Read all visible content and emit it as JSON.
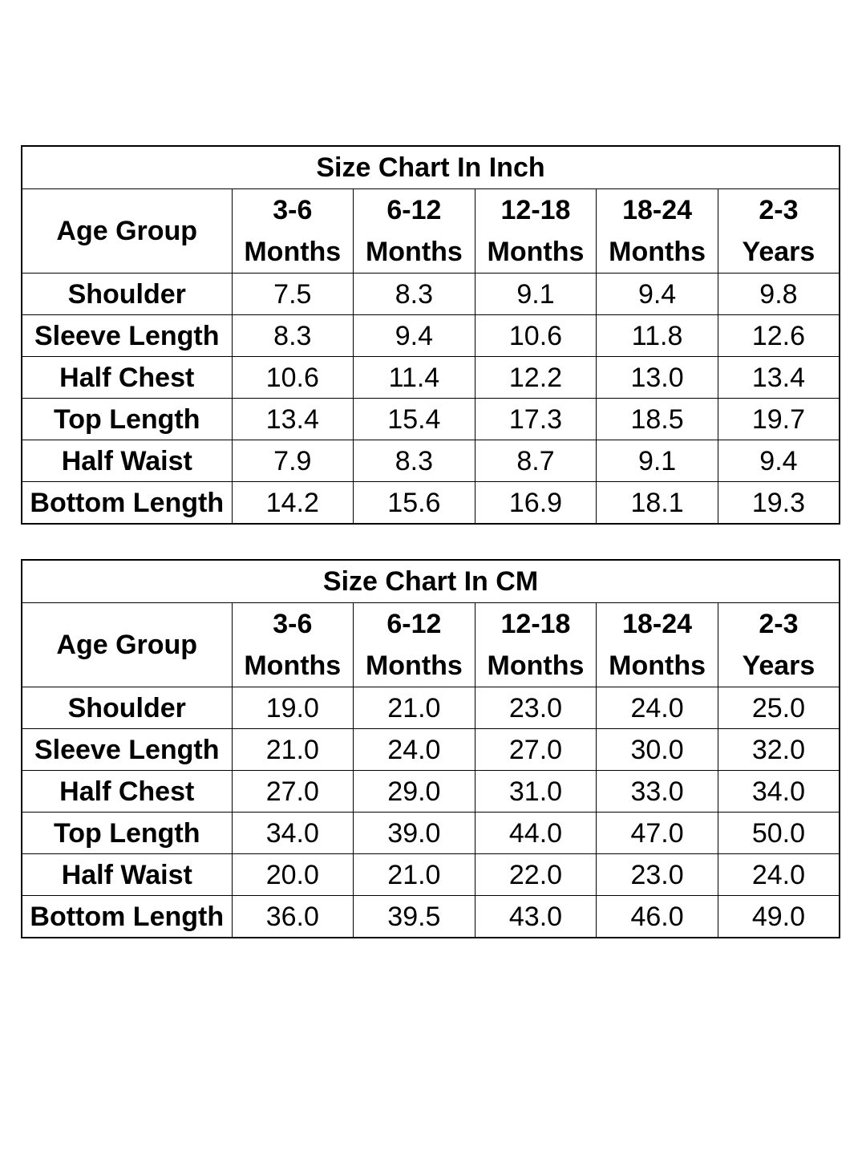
{
  "tables": [
    {
      "title": "Size Chart In Inch",
      "header_label": "Age Group",
      "columns": [
        {
          "line1": "3-6",
          "line2": "Months"
        },
        {
          "line1": "6-12",
          "line2": "Months"
        },
        {
          "line1": "12-18",
          "line2": "Months"
        },
        {
          "line1": "18-24",
          "line2": "Months"
        },
        {
          "line1": "2-3",
          "line2": "Years"
        }
      ],
      "rows": [
        {
          "label": "Shoulder",
          "values": [
            "7.5",
            "8.3",
            "9.1",
            "9.4",
            "9.8"
          ]
        },
        {
          "label": "Sleeve Length",
          "values": [
            "8.3",
            "9.4",
            "10.6",
            "11.8",
            "12.6"
          ]
        },
        {
          "label": "Half Chest",
          "values": [
            "10.6",
            "11.4",
            "12.2",
            "13.0",
            "13.4"
          ]
        },
        {
          "label": "Top Length",
          "values": [
            "13.4",
            "15.4",
            "17.3",
            "18.5",
            "19.7"
          ]
        },
        {
          "label": "Half Waist",
          "values": [
            "7.9",
            "8.3",
            "8.7",
            "9.1",
            "9.4"
          ]
        },
        {
          "label": "Bottom Length",
          "values": [
            "14.2",
            "15.6",
            "16.9",
            "18.1",
            "19.3"
          ]
        }
      ]
    },
    {
      "title": "Size Chart In CM",
      "header_label": "Age Group",
      "columns": [
        {
          "line1": "3-6",
          "line2": "Months"
        },
        {
          "line1": "6-12",
          "line2": "Months"
        },
        {
          "line1": "12-18",
          "line2": "Months"
        },
        {
          "line1": "18-24",
          "line2": "Months"
        },
        {
          "line1": "2-3",
          "line2": "Years"
        }
      ],
      "rows": [
        {
          "label": "Shoulder",
          "values": [
            "19.0",
            "21.0",
            "23.0",
            "24.0",
            "25.0"
          ]
        },
        {
          "label": "Sleeve Length",
          "values": [
            "21.0",
            "24.0",
            "27.0",
            "30.0",
            "32.0"
          ]
        },
        {
          "label": "Half Chest",
          "values": [
            "27.0",
            "29.0",
            "31.0",
            "33.0",
            "34.0"
          ]
        },
        {
          "label": "Top Length",
          "values": [
            "34.0",
            "39.0",
            "44.0",
            "47.0",
            "50.0"
          ]
        },
        {
          "label": "Half Waist",
          "values": [
            "20.0",
            "21.0",
            "22.0",
            "23.0",
            "24.0"
          ]
        },
        {
          "label": "Bottom Length",
          "values": [
            "36.0",
            "39.5",
            "43.0",
            "46.0",
            "49.0"
          ]
        }
      ]
    }
  ]
}
